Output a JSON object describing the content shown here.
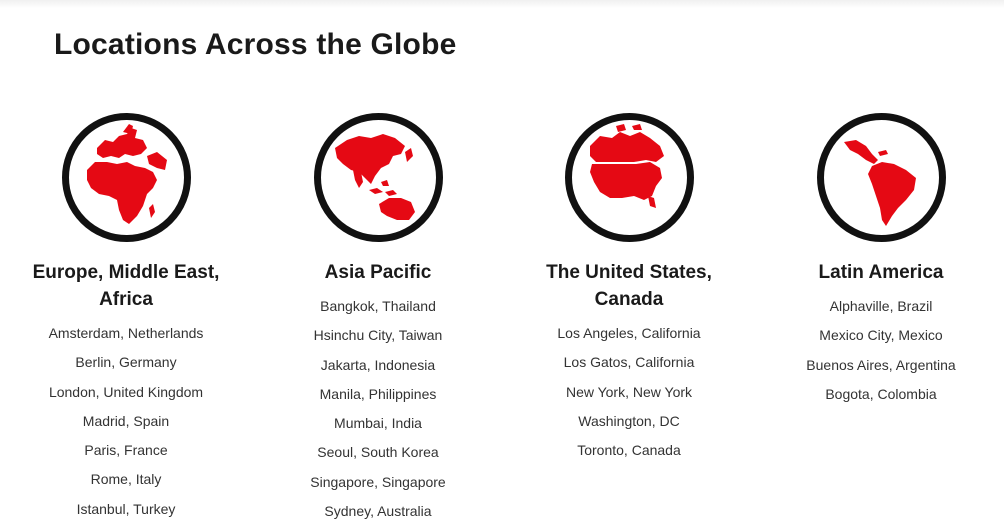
{
  "page_title": "Locations Across the Globe",
  "colors": {
    "accent": "#e50914",
    "outline": "#111111"
  },
  "regions": [
    {
      "icon": "globe-europe-africa-icon",
      "title": "Europe, Middle East, Africa",
      "cities": [
        "Amsterdam, Netherlands",
        "Berlin, Germany",
        "London, United Kingdom",
        "Madrid, Spain",
        "Paris, France",
        "Rome, Italy",
        "Istanbul, Turkey"
      ]
    },
    {
      "icon": "globe-asia-pacific-icon",
      "title": "Asia Pacific",
      "cities": [
        "Bangkok, Thailand",
        "Hsinchu City, Taiwan",
        "Jakarta, Indonesia",
        "Manila, Philippines",
        "Mumbai, India",
        "Seoul, South Korea",
        "Singapore, Singapore",
        "Sydney, Australia"
      ]
    },
    {
      "icon": "globe-north-america-icon",
      "title": "The United States, Canada",
      "cities": [
        "Los Angeles, California",
        "Los Gatos, California",
        "New York, New York",
        "Washington, DC",
        "Toronto, Canada"
      ]
    },
    {
      "icon": "globe-latin-america-icon",
      "title": "Latin America",
      "cities": [
        "Alphaville, Brazil",
        "Mexico City, Mexico",
        "Buenos Aires, Argentina",
        "Bogota, Colombia"
      ]
    }
  ]
}
